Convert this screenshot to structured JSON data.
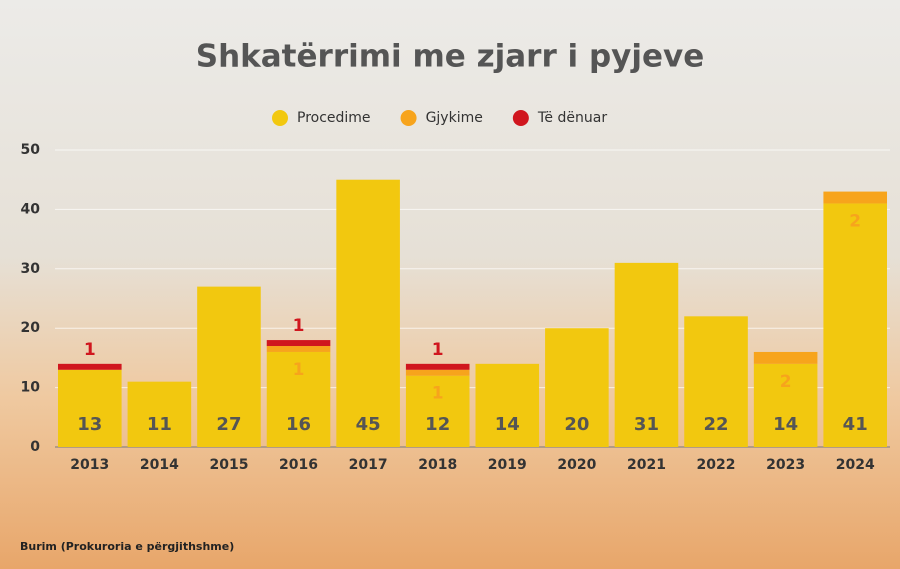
{
  "chart_data": {
    "type": "stacked_bar",
    "title": "Shkatërrimi me zjarr i pyjeve",
    "source": "Burim (Prokuroria e përgjithshme)",
    "categories": [
      "2013",
      "2014",
      "2015",
      "2016",
      "2017",
      "2018",
      "2019",
      "2020",
      "2021",
      "2022",
      "2023",
      "2024"
    ],
    "series": [
      {
        "name": "Procedime",
        "color": "#f2c80f",
        "label_color": "#555555",
        "values": [
          13,
          11,
          27,
          16,
          45,
          12,
          14,
          20,
          31,
          22,
          14,
          41
        ]
      },
      {
        "name": "Gjykime",
        "color": "#f7a41c",
        "label_color": "#f7a41c",
        "values": [
          null,
          null,
          null,
          1,
          null,
          1,
          null,
          null,
          null,
          null,
          2,
          2
        ]
      },
      {
        "name": "Të dënuar",
        "color": "#d0161e",
        "label_color": "#d0161e",
        "values": [
          1,
          null,
          null,
          1,
          null,
          1,
          null,
          null,
          null,
          null,
          null,
          null
        ]
      }
    ],
    "ylim": [
      0,
      50
    ],
    "yticks": [
      0,
      10,
      20,
      30,
      40,
      50
    ],
    "grid": true
  }
}
